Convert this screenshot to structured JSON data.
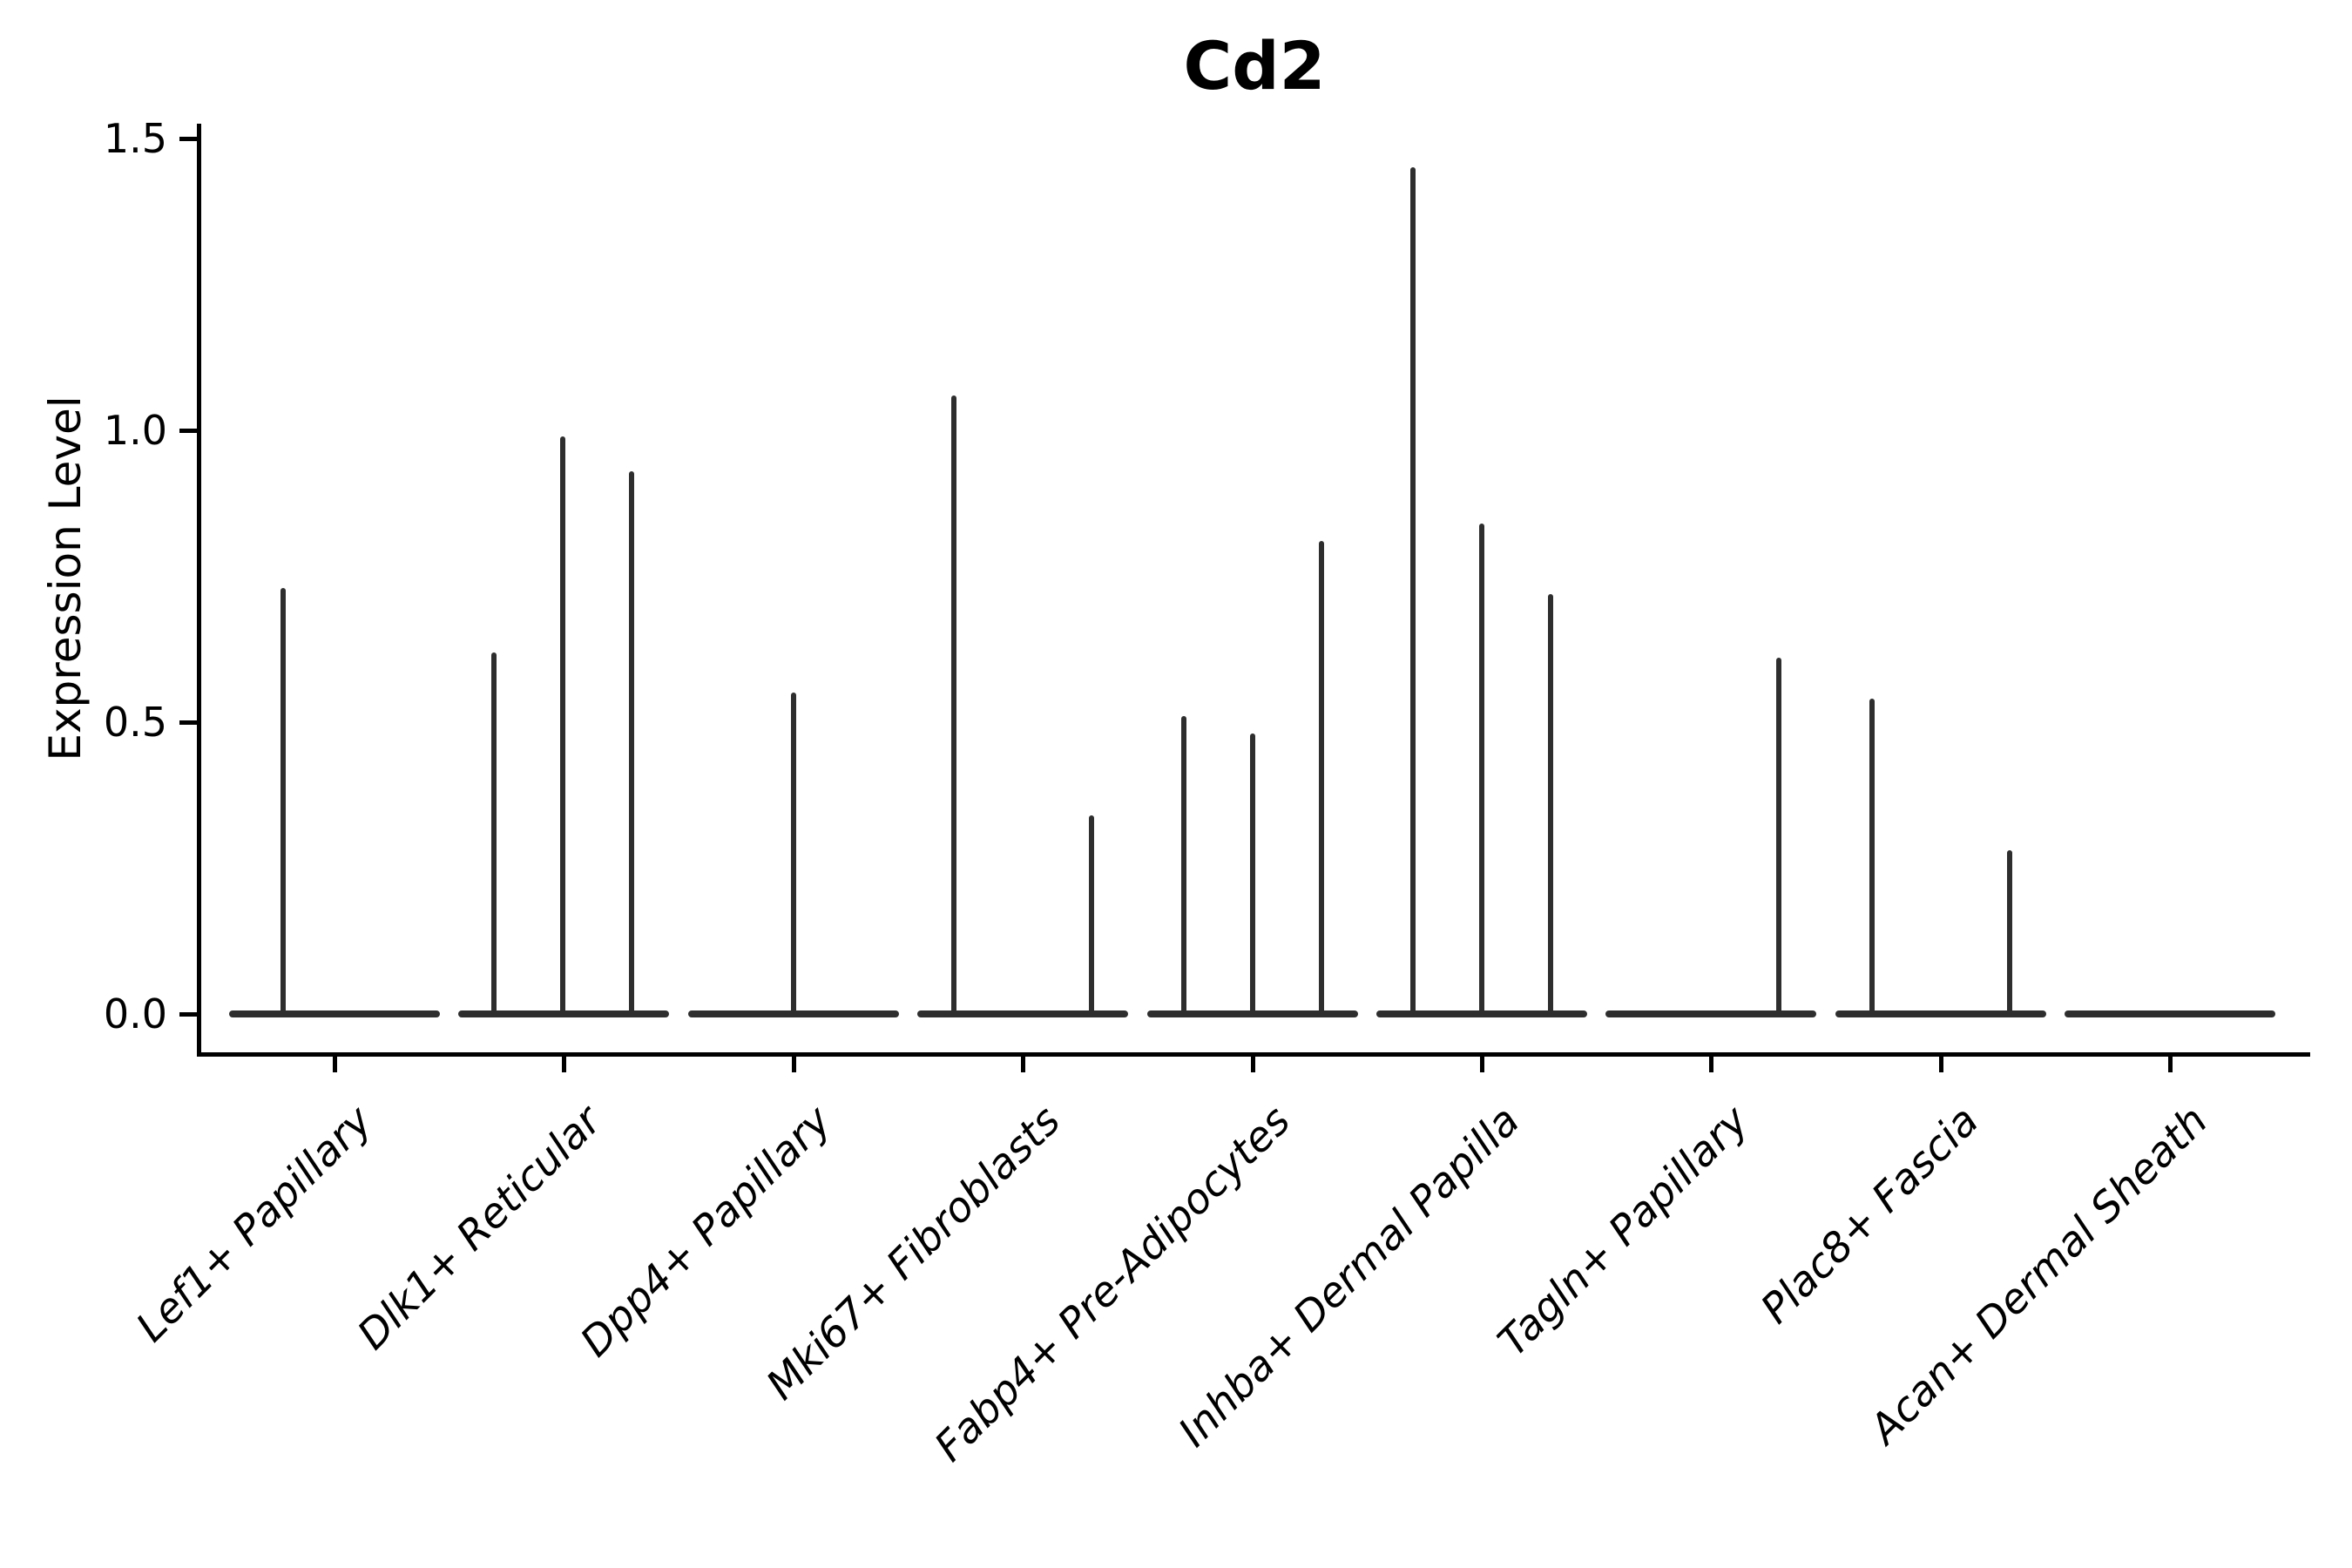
{
  "figure": {
    "title": "Cd2",
    "y_axis": {
      "label": "Expression Level",
      "tick_labels": [
        "0.0",
        "0.5",
        "1.0",
        "1.5"
      ]
    },
    "x_axis": {
      "tick_labels": [
        "Lef1+ Papillary",
        "Dlk1+ Reticular",
        "Dpp4+ Papillary",
        "Mki67+ Fibroblasts",
        "Fabp4+ Pre-Adipocytes",
        "Inhba+ Dermal Papilla",
        "Tagln+ Papillary",
        "Plac8+ Fascia",
        "Acan+ Dermal Sheath"
      ]
    }
  },
  "colors": {
    "background": "#ffffff",
    "axis": "#000000",
    "text": "#000000",
    "violin": "#2e2e2e"
  },
  "chart_data": {
    "type": "violin",
    "title": "Cd2",
    "xlabel": "",
    "ylabel": "Expression Level",
    "yticks": [
      0.0,
      0.5,
      1.0,
      1.5
    ],
    "ylim": [
      -0.07,
      1.52
    ],
    "grid": false,
    "legend": false,
    "categories": [
      "Lef1+ Papillary",
      "Dlk1+ Reticular",
      "Dpp4+ Papillary",
      "Mki67+ Fibroblasts",
      "Fabp4+ Pre-Adipocytes",
      "Inhba+ Dermal Papilla",
      "Tagln+ Papillary",
      "Plac8+ Fascia",
      "Acan+ Dermal Sheath"
    ],
    "violins": [
      {
        "category": "Lef1+ Papillary",
        "spikes": [
          {
            "offset": -59,
            "max": 0.73
          }
        ]
      },
      {
        "category": "Dlk1+ Reticular",
        "spikes": [
          {
            "offset": -80,
            "max": 0.62
          },
          {
            "offset": -1,
            "max": 0.99
          },
          {
            "offset": 78,
            "max": 0.93
          }
        ]
      },
      {
        "category": "Dpp4+ Papillary",
        "spikes": [
          {
            "offset": 0,
            "max": 0.55
          }
        ]
      },
      {
        "category": "Mki67+ Fibroblasts",
        "spikes": [
          {
            "offset": -79,
            "max": 1.06
          },
          {
            "offset": 79,
            "max": 0.34
          }
        ]
      },
      {
        "category": "Fabp4+ Pre-Adipocytes",
        "spikes": [
          {
            "offset": -79,
            "max": 0.51
          },
          {
            "offset": 0,
            "max": 0.48
          },
          {
            "offset": 79,
            "max": 0.81
          }
        ]
      },
      {
        "category": "Inhba+ Dermal Papilla",
        "spikes": [
          {
            "offset": -79,
            "max": 1.45
          },
          {
            "offset": 0,
            "max": 0.84
          },
          {
            "offset": 79,
            "max": 0.72
          }
        ]
      },
      {
        "category": "Tagln+ Papillary",
        "spikes": [
          {
            "offset": 78,
            "max": 0.61
          }
        ]
      },
      {
        "category": "Plac8+ Fascia",
        "spikes": [
          {
            "offset": -79,
            "max": 0.54
          },
          {
            "offset": 79,
            "max": 0.28
          }
        ]
      },
      {
        "category": "Acan+ Dermal Sheath",
        "spikes": []
      }
    ],
    "baseline_note": "every category shows a flat violin body at expression 0; spikes are thin violin tails whose top equals the max expression value"
  }
}
